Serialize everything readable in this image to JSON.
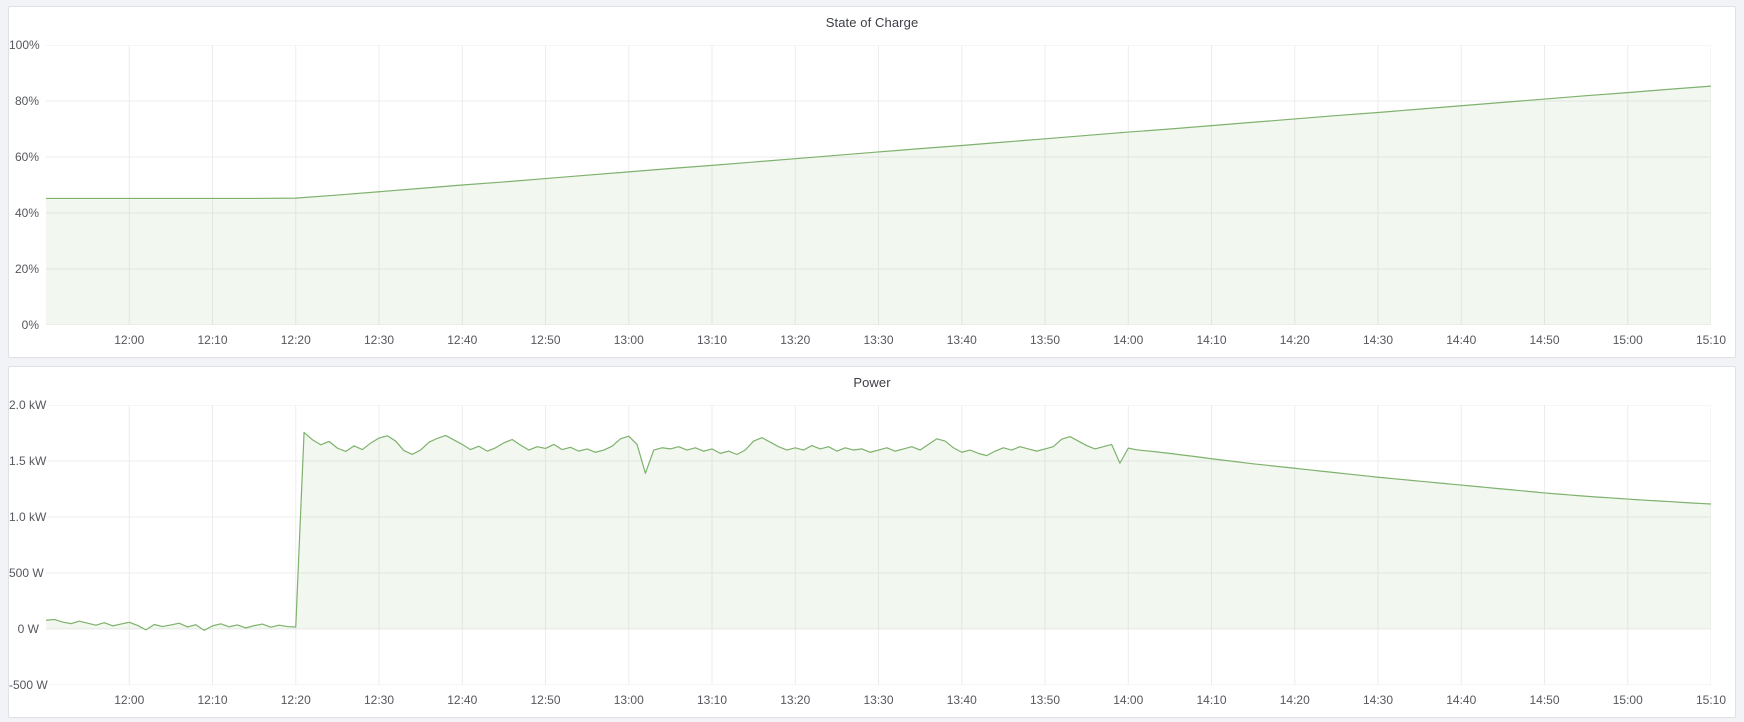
{
  "page": {
    "background": "#f2f3f6",
    "panel_background": "#ffffff",
    "panel_border": "#e0e1e5",
    "grid_color": "#ececee",
    "tick_color": "#55575c",
    "title_color": "#3c4046",
    "series_color": "#7EB26D",
    "fill_opacity": 0.1
  },
  "chart_data": [
    {
      "type": "area",
      "title": "State of Charge",
      "ylabel": "",
      "xlabel": "",
      "grid": true,
      "legend": "none",
      "ylim": [
        0,
        100
      ],
      "y_ticks": [
        {
          "value": 0,
          "label": "0%"
        },
        {
          "value": 20,
          "label": "20%"
        },
        {
          "value": 40,
          "label": "40%"
        },
        {
          "value": 60,
          "label": "60%"
        },
        {
          "value": 80,
          "label": "80%"
        },
        {
          "value": 100,
          "label": "100%"
        }
      ],
      "x_range_min": [
        0,
        200
      ],
      "x_ticks": {
        "start_min": 10,
        "step_min": 10,
        "labels": [
          "12:00",
          "12:10",
          "12:20",
          "12:30",
          "12:40",
          "12:50",
          "13:00",
          "13:10",
          "13:20",
          "13:30",
          "13:40",
          "13:50",
          "14:00",
          "14:10",
          "14:20",
          "14:30",
          "14:40",
          "14:50",
          "15:00",
          "15:10"
        ]
      },
      "series": [
        {
          "name": "State of Charge",
          "unit": "%",
          "color": "#7EB26D",
          "baseline": 0,
          "t_start_min": 0,
          "t_step_min": 5,
          "values": [
            45.2,
            45.2,
            45.2,
            45.2,
            45.2,
            45.2,
            45.3,
            46.4,
            47.6,
            48.8,
            50.0,
            51.1,
            52.3,
            53.5,
            54.7,
            55.9,
            57.0,
            58.2,
            59.4,
            60.6,
            61.8,
            63.0,
            64.1,
            65.3,
            66.5,
            67.7,
            68.9,
            70.0,
            71.2,
            72.4,
            73.6,
            74.8,
            75.9,
            77.1,
            78.3,
            79.5,
            80.7,
            81.9,
            83.0,
            84.2,
            85.3
          ]
        }
      ]
    },
    {
      "type": "area",
      "title": "Power",
      "ylabel": "",
      "xlabel": "",
      "grid": true,
      "legend": "none",
      "ylim": [
        -500,
        2000
      ],
      "y_ticks": [
        {
          "value": -500,
          "label": "-500 W"
        },
        {
          "value": 0,
          "label": "0 W"
        },
        {
          "value": 500,
          "label": "500 W"
        },
        {
          "value": 1000,
          "label": "1.0 kW"
        },
        {
          "value": 1500,
          "label": "1.5 kW"
        },
        {
          "value": 2000,
          "label": "2.0 kW"
        }
      ],
      "x_range_min": [
        0,
        200
      ],
      "x_ticks": {
        "start_min": 10,
        "step_min": 10,
        "labels": [
          "12:00",
          "12:10",
          "12:20",
          "12:30",
          "12:40",
          "12:50",
          "13:00",
          "13:10",
          "13:20",
          "13:30",
          "13:40",
          "13:50",
          "14:00",
          "14:10",
          "14:20",
          "14:30",
          "14:40",
          "14:50",
          "15:00",
          "15:10"
        ]
      },
      "series": [
        {
          "name": "Power",
          "unit": "W",
          "color": "#7EB26D",
          "baseline": 0,
          "t_start_min": 0,
          "t_step_min": 1,
          "values": [
            78,
            85,
            62,
            48,
            70,
            52,
            34,
            56,
            28,
            44,
            60,
            32,
            -8,
            40,
            22,
            36,
            52,
            18,
            38,
            -12,
            28,
            46,
            20,
            36,
            10,
            30,
            44,
            16,
            34,
            22,
            18,
            1755,
            1690,
            1645,
            1675,
            1615,
            1585,
            1635,
            1602,
            1660,
            1705,
            1725,
            1678,
            1592,
            1560,
            1598,
            1668,
            1702,
            1728,
            1688,
            1648,
            1602,
            1632,
            1588,
            1618,
            1662,
            1692,
            1642,
            1598,
            1628,
            1612,
            1648,
            1602,
            1622,
            1588,
            1608,
            1578,
            1598,
            1632,
            1698,
            1722,
            1648,
            1390,
            1598,
            1618,
            1608,
            1628,
            1598,
            1618,
            1588,
            1608,
            1568,
            1588,
            1558,
            1598,
            1678,
            1708,
            1668,
            1628,
            1598,
            1618,
            1598,
            1638,
            1608,
            1628,
            1588,
            1618,
            1598,
            1608,
            1578,
            1598,
            1618,
            1588,
            1608,
            1628,
            1598,
            1648,
            1698,
            1678,
            1618,
            1578,
            1598,
            1568,
            1548,
            1588,
            1618,
            1598,
            1628,
            1608,
            1588,
            1608,
            1628,
            1695,
            1718,
            1678,
            1638,
            1608,
            1628,
            1648,
            1480,
            1615,
            1600,
            1592,
            1585,
            1576,
            1568,
            1558,
            1549,
            1540,
            1530,
            1520,
            1511,
            1502,
            1493,
            1484,
            1475,
            1467,
            1459,
            1451,
            1443,
            1435,
            1427,
            1419,
            1411,
            1403,
            1395,
            1387,
            1379,
            1371,
            1363,
            1355,
            1348,
            1341,
            1334,
            1327,
            1320,
            1313,
            1306,
            1299,
            1292,
            1285,
            1278,
            1271,
            1264,
            1257,
            1250,
            1243,
            1236,
            1229,
            1222,
            1215,
            1209,
            1203,
            1197,
            1191,
            1185,
            1180,
            1175,
            1170,
            1165,
            1160,
            1155,
            1150,
            1146,
            1142,
            1138,
            1133,
            1128,
            1124,
            1120,
            1116
          ]
        }
      ]
    }
  ]
}
